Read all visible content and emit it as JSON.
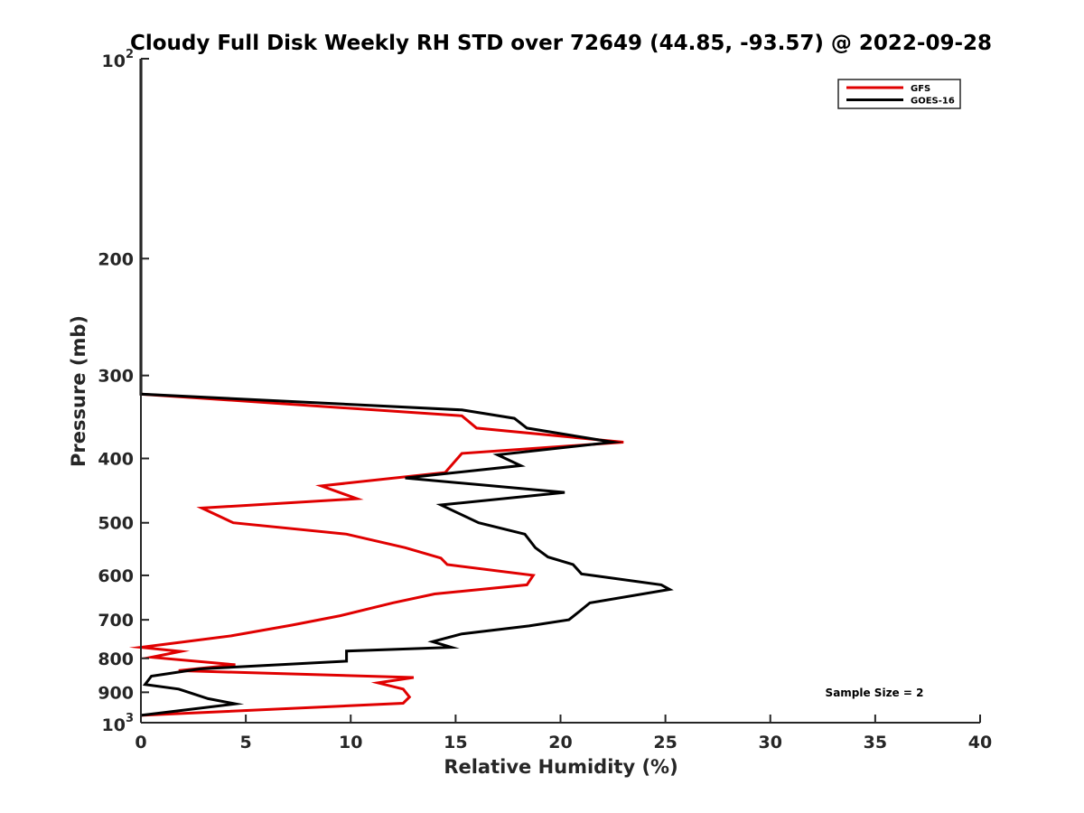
{
  "chart_data": {
    "type": "line",
    "title": "Cloudy Full Disk Weekly RH STD over 72649 (44.85, -93.57) @ 2022-09-28",
    "xlabel": "Relative Humidity (%)",
    "ylabel": "Pressure (mb)",
    "xlim": [
      0,
      40
    ],
    "ylim": [
      100,
      1000
    ],
    "yscale": "log",
    "y_reversed": true,
    "x_ticks": [
      "0",
      "5",
      "10",
      "15",
      "20",
      "25",
      "30",
      "35",
      "40"
    ],
    "y_ticks": [
      {
        "value": 100,
        "base": "10",
        "exp": "2"
      },
      {
        "value": 200,
        "label": "200"
      },
      {
        "value": 300,
        "label": "300"
      },
      {
        "value": 400,
        "label": "400"
      },
      {
        "value": 500,
        "label": "500"
      },
      {
        "value": 600,
        "label": "600"
      },
      {
        "value": 700,
        "label": "700"
      },
      {
        "value": 800,
        "label": "800"
      },
      {
        "value": 900,
        "label": "900"
      },
      {
        "value": 1000,
        "base": "10",
        "exp": "3"
      }
    ],
    "grid": false,
    "legend_position": "top-right",
    "series": [
      {
        "name": "GFS",
        "color": "#e00000",
        "points": [
          [
            0,
            100
          ],
          [
            0,
            200
          ],
          [
            0,
            300
          ],
          [
            0,
            320
          ],
          [
            15.3,
            345
          ],
          [
            16.0,
            360
          ],
          [
            23.0,
            378
          ],
          [
            15.3,
            393
          ],
          [
            14.5,
            420
          ],
          [
            8.6,
            440
          ],
          [
            10.3,
            460
          ],
          [
            2.9,
            475
          ],
          [
            4.4,
            500
          ],
          [
            9.8,
            520
          ],
          [
            12.6,
            545
          ],
          [
            14.3,
            565
          ],
          [
            14.6,
            578
          ],
          [
            18.7,
            600
          ],
          [
            18.4,
            620
          ],
          [
            14.0,
            640
          ],
          [
            12.0,
            660
          ],
          [
            9.5,
            690
          ],
          [
            7.2,
            713
          ],
          [
            4.3,
            740
          ],
          [
            0,
            770
          ],
          [
            1.9,
            781
          ],
          [
            0.5,
            797
          ],
          [
            4.5,
            818
          ],
          [
            1.8,
            835
          ],
          [
            13.0,
            855
          ],
          [
            11.3,
            871
          ],
          [
            12.5,
            890
          ],
          [
            12.8,
            915
          ],
          [
            12.5,
            935
          ],
          [
            0,
            975
          ]
        ]
      },
      {
        "name": "GOES-16",
        "color": "#000000",
        "points": [
          [
            0,
            100
          ],
          [
            0,
            200
          ],
          [
            0,
            300
          ],
          [
            0,
            320
          ],
          [
            15.3,
            338
          ],
          [
            17.8,
            348
          ],
          [
            18.4,
            360
          ],
          [
            22.5,
            378
          ],
          [
            17.0,
            395
          ],
          [
            18.1,
            410
          ],
          [
            12.6,
            428
          ],
          [
            20.2,
            450
          ],
          [
            14.3,
            470
          ],
          [
            16.1,
            500
          ],
          [
            18.3,
            520
          ],
          [
            18.8,
            545
          ],
          [
            19.4,
            563
          ],
          [
            20.6,
            578
          ],
          [
            21.0,
            597
          ],
          [
            24.8,
            620
          ],
          [
            25.2,
            630
          ],
          [
            21.4,
            660
          ],
          [
            20.9,
            680
          ],
          [
            20.4,
            700
          ],
          [
            18.5,
            715
          ],
          [
            15.3,
            735
          ],
          [
            13.9,
            755
          ],
          [
            14.8,
            770
          ],
          [
            9.8,
            780
          ],
          [
            9.8,
            808
          ],
          [
            2.8,
            830
          ],
          [
            0.5,
            851
          ],
          [
            0.2,
            876
          ],
          [
            1.8,
            890
          ],
          [
            3.2,
            920
          ],
          [
            4.5,
            937
          ],
          [
            0,
            975
          ]
        ]
      }
    ],
    "annotations": [
      "Sample Size = 2"
    ]
  }
}
